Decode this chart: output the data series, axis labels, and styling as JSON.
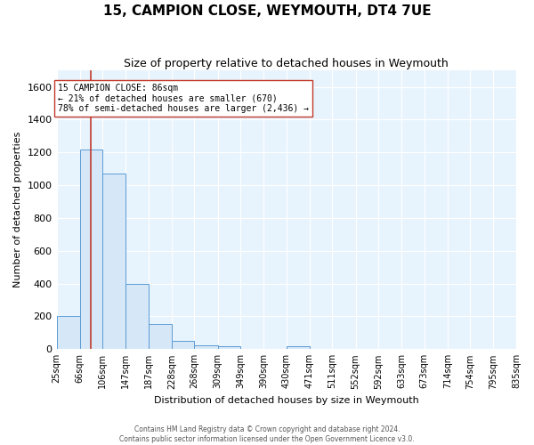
{
  "title": "15, CAMPION CLOSE, WEYMOUTH, DT4 7UE",
  "subtitle": "Size of property relative to detached houses in Weymouth",
  "xlabel": "Distribution of detached houses by size in Weymouth",
  "ylabel": "Number of detached properties",
  "bin_edges": [
    25,
    66,
    106,
    147,
    187,
    228,
    268,
    309,
    349,
    390,
    430,
    471,
    511,
    552,
    592,
    633,
    673,
    714,
    754,
    795,
    835
  ],
  "bar_heights": [
    200,
    1220,
    1070,
    400,
    155,
    50,
    25,
    20,
    0,
    0,
    20,
    0,
    0,
    0,
    0,
    0,
    0,
    0,
    0,
    0
  ],
  "bar_facecolor": "#d6e8f7",
  "bar_edgecolor": "#5b9bd5",
  "ylim": [
    0,
    1700
  ],
  "yticks": [
    0,
    200,
    400,
    600,
    800,
    1000,
    1200,
    1400,
    1600
  ],
  "property_size": 86,
  "vline_color": "#c0392b",
  "annotation_line1": "15 CAMPION CLOSE: 86sqm",
  "annotation_line2": "← 21% of detached houses are smaller (670)",
  "annotation_line3": "78% of semi-detached houses are larger (2,436) →",
  "annotation_box_facecolor": "#ffffff",
  "annotation_box_edgecolor": "#c0392b",
  "footer_line1": "Contains HM Land Registry data © Crown copyright and database right 2024.",
  "footer_line2": "Contains public sector information licensed under the Open Government Licence v3.0.",
  "fig_facecolor": "#ffffff",
  "ax_facecolor": "#e8f4fd",
  "grid_color": "#ffffff",
  "title_fontsize": 11,
  "subtitle_fontsize": 9,
  "axis_label_fontsize": 8,
  "tick_label_fontsize": 7,
  "footer_fontsize": 5.5
}
